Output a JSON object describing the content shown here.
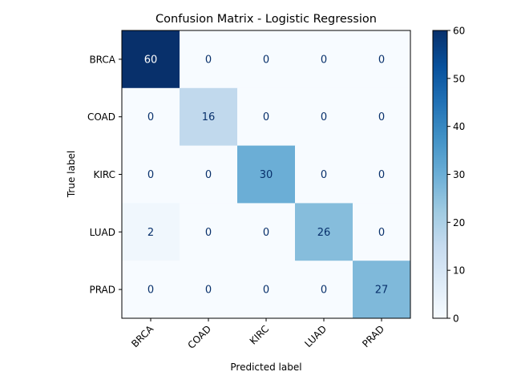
{
  "chart_data": {
    "type": "heatmap",
    "title": "Confusion Matrix - Logistic Regression",
    "xlabel": "Predicted label",
    "ylabel": "True label",
    "x_categories": [
      "BRCA",
      "COAD",
      "KIRC",
      "LUAD",
      "PRAD"
    ],
    "y_categories": [
      "BRCA",
      "COAD",
      "KIRC",
      "LUAD",
      "PRAD"
    ],
    "matrix": [
      [
        60,
        0,
        0,
        0,
        0
      ],
      [
        0,
        16,
        0,
        0,
        0
      ],
      [
        0,
        0,
        30,
        0,
        0
      ],
      [
        2,
        0,
        0,
        26,
        0
      ],
      [
        0,
        0,
        0,
        0,
        27
      ]
    ],
    "colormap": "Blues",
    "color_range": [
      0,
      60
    ],
    "colorbar_ticks": [
      0,
      10,
      20,
      30,
      40,
      50,
      60
    ],
    "x_tick_rotation": 45,
    "grid": false
  }
}
